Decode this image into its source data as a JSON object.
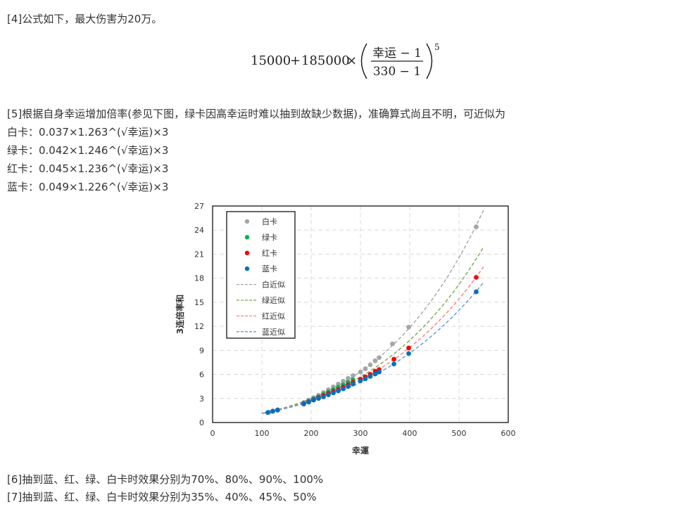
{
  "lines": {
    "note4": "[4]公式如下，最大伤害为20万。",
    "note5": "[5]根据自身幸运增加倍率(参见下图，绿卡因高幸运时难以抽到故缺少数据)，准确算式尚且不明，可近似为",
    "white_formula": "白卡：0.037×1.263^(√幸运)×3",
    "green_formula": "绿卡：0.042×1.246^(√幸运)×3",
    "red_formula": "红卡：0.045×1.236^(√幸运)×3",
    "blue_formula": "蓝卡：0.049×1.226^(√幸运)×3",
    "note6": "[6]抽到蓝、红、绿、白卡时效果分别为70%、80%、90%、100%",
    "note7": "[7]抽到蓝、红、绿、白卡时效果分别为35%、40%、45%、50%"
  },
  "formula": {
    "a": "15000",
    "plus": "+",
    "b": "185000",
    "times": "×",
    "numerator": "幸运 − 1",
    "denominator": "330 − 1",
    "exponent": "5"
  },
  "chart_data": {
    "type": "scatter",
    "xlabel": "幸運",
    "ylabel": "3连倍率和",
    "xlim": [
      0,
      600
    ],
    "ylim": [
      0,
      27
    ],
    "xticks": [
      0,
      100,
      200,
      300,
      400,
      500,
      600
    ],
    "yticks": [
      0,
      3,
      6,
      9,
      12,
      15,
      18,
      21,
      24,
      27
    ],
    "grid": true,
    "legend_position": "top-left",
    "series": [
      {
        "name": "白卡",
        "kind": "points",
        "color": "#a6a6a6",
        "x": [
          115,
          123,
          132,
          185,
          195,
          205,
          215,
          225,
          235,
          245,
          255,
          265,
          275,
          285,
          300,
          310,
          320,
          330,
          338,
          365,
          398,
          535
        ],
        "y": [
          1.3,
          1.45,
          1.6,
          2.5,
          2.8,
          3.1,
          3.4,
          3.75,
          4.1,
          4.45,
          4.8,
          5.15,
          5.5,
          5.85,
          6.3,
          6.7,
          7.2,
          7.7,
          8.1,
          9.8,
          11.9,
          24.4
        ]
      },
      {
        "name": "绿卡",
        "kind": "points",
        "color": "#00b050",
        "x": [
          185,
          195,
          205,
          215,
          225,
          235,
          245,
          255,
          265,
          275,
          285
        ],
        "y": [
          2.4,
          2.65,
          2.95,
          3.2,
          3.5,
          3.8,
          4.1,
          4.4,
          4.7,
          5.0,
          5.3
        ]
      },
      {
        "name": "红卡",
        "kind": "points",
        "color": "#ff0000",
        "x": [
          185,
          195,
          205,
          215,
          225,
          235,
          245,
          255,
          265,
          275,
          285,
          300,
          310,
          320,
          330,
          338,
          368,
          398,
          535
        ],
        "y": [
          2.35,
          2.6,
          2.85,
          3.1,
          3.35,
          3.6,
          3.85,
          4.1,
          4.4,
          4.7,
          5.0,
          5.4,
          5.7,
          6.0,
          6.4,
          6.6,
          7.9,
          9.3,
          18.1
        ]
      },
      {
        "name": "蓝卡",
        "kind": "points",
        "color": "#0070c0",
        "x": [
          112,
          122,
          132,
          185,
          195,
          205,
          215,
          225,
          235,
          245,
          255,
          265,
          275,
          285,
          300,
          310,
          320,
          330,
          338,
          368,
          398,
          535
        ],
        "y": [
          1.25,
          1.4,
          1.55,
          2.3,
          2.55,
          2.8,
          3.0,
          3.2,
          3.45,
          3.7,
          3.95,
          4.2,
          4.5,
          4.8,
          5.2,
          5.45,
          5.75,
          6.05,
          6.3,
          7.3,
          8.6,
          16.3
        ]
      },
      {
        "name": "白近似",
        "kind": "fit",
        "color": "#a6a6a6",
        "a": 0.037,
        "b": 1.263
      },
      {
        "name": "绿近似",
        "kind": "fit",
        "color": "#70ad47",
        "a": 0.042,
        "b": 1.246
      },
      {
        "name": "红近似",
        "kind": "fit",
        "color": "#ff7c80",
        "a": 0.045,
        "b": 1.236
      },
      {
        "name": "蓝近似",
        "kind": "fit",
        "color": "#5b9bd5",
        "a": 0.049,
        "b": 1.226
      }
    ]
  }
}
